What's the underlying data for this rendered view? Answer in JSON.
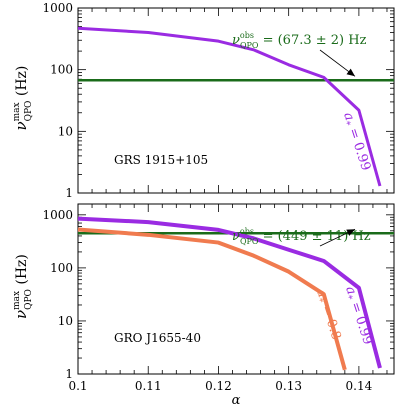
{
  "chart_data": [
    {
      "type": "line",
      "ylabel": "ν",
      "ylabel_sup": "max",
      "ylabel_sub": "QPO",
      "ylabel_unit": "(Hz)",
      "yscale": "log",
      "xlim": [
        0.1,
        0.145
      ],
      "ylim": [
        1,
        1000
      ],
      "x_ticks": [
        0.1,
        0.11,
        0.12,
        0.13,
        0.14
      ],
      "y_ticks": [
        1,
        10,
        100,
        1000
      ],
      "y_tick_labels": [
        "1",
        "10",
        "100",
        "1000"
      ],
      "source_label": "GRS 1915+105",
      "series": [
        {
          "name": "a* = 0.99",
          "name_base": "a",
          "name_sub": "*",
          "name_value": " = 0.99",
          "color": "#9a2be2",
          "x": [
            0.1,
            0.11,
            0.12,
            0.125,
            0.13,
            0.135,
            0.14,
            0.143
          ],
          "y": [
            470,
            400,
            290,
            210,
            120,
            75,
            22,
            1.3
          ]
        }
      ],
      "hline": {
        "y": 67.3,
        "color": "#1a6b1a",
        "label_prefix": "ν",
        "label_sup": "obs",
        "label_sub": "QPO",
        "label_value": " = (67.3 ± 2) Hz"
      }
    },
    {
      "type": "line",
      "xlabel": "α",
      "ylabel": "ν",
      "ylabel_sup": "max",
      "ylabel_sub": "QPO",
      "ylabel_unit": "(Hz)",
      "yscale": "log",
      "xlim": [
        0.1,
        0.145
      ],
      "ylim": [
        1,
        1600
      ],
      "x_ticks": [
        0.1,
        0.11,
        0.12,
        0.13,
        0.14
      ],
      "x_tick_labels": [
        "0.1",
        "0.11",
        "0.12",
        "0.13",
        "0.14"
      ],
      "y_ticks": [
        1,
        10,
        100,
        1000
      ],
      "y_tick_labels": [
        "1",
        "10",
        "100",
        "1000"
      ],
      "source_label": "GRO J1655-40",
      "series": [
        {
          "name": "a* = 0.99",
          "name_base": "a",
          "name_sub": "*",
          "name_value": " = 0.99",
          "color": "#9a2be2",
          "x": [
            0.1,
            0.11,
            0.12,
            0.125,
            0.13,
            0.135,
            0.14,
            0.143
          ],
          "y": [
            850,
            730,
            520,
            360,
            220,
            135,
            42,
            1.3
          ]
        },
        {
          "name": "a* = 0.8",
          "name_base": "a",
          "name_sub": "*",
          "name_value": " = 0.8",
          "color": "#f07b4f",
          "x": [
            0.1,
            0.11,
            0.12,
            0.125,
            0.13,
            0.135,
            0.138
          ],
          "y": [
            530,
            420,
            300,
            170,
            85,
            32,
            1.2
          ]
        }
      ],
      "hline": {
        "y": 449,
        "color": "#1a6b1a",
        "label_prefix": "ν",
        "label_sup": "obs",
        "label_sub": "QPO",
        "label_value": " = (449 ± 11) Hz"
      }
    }
  ]
}
